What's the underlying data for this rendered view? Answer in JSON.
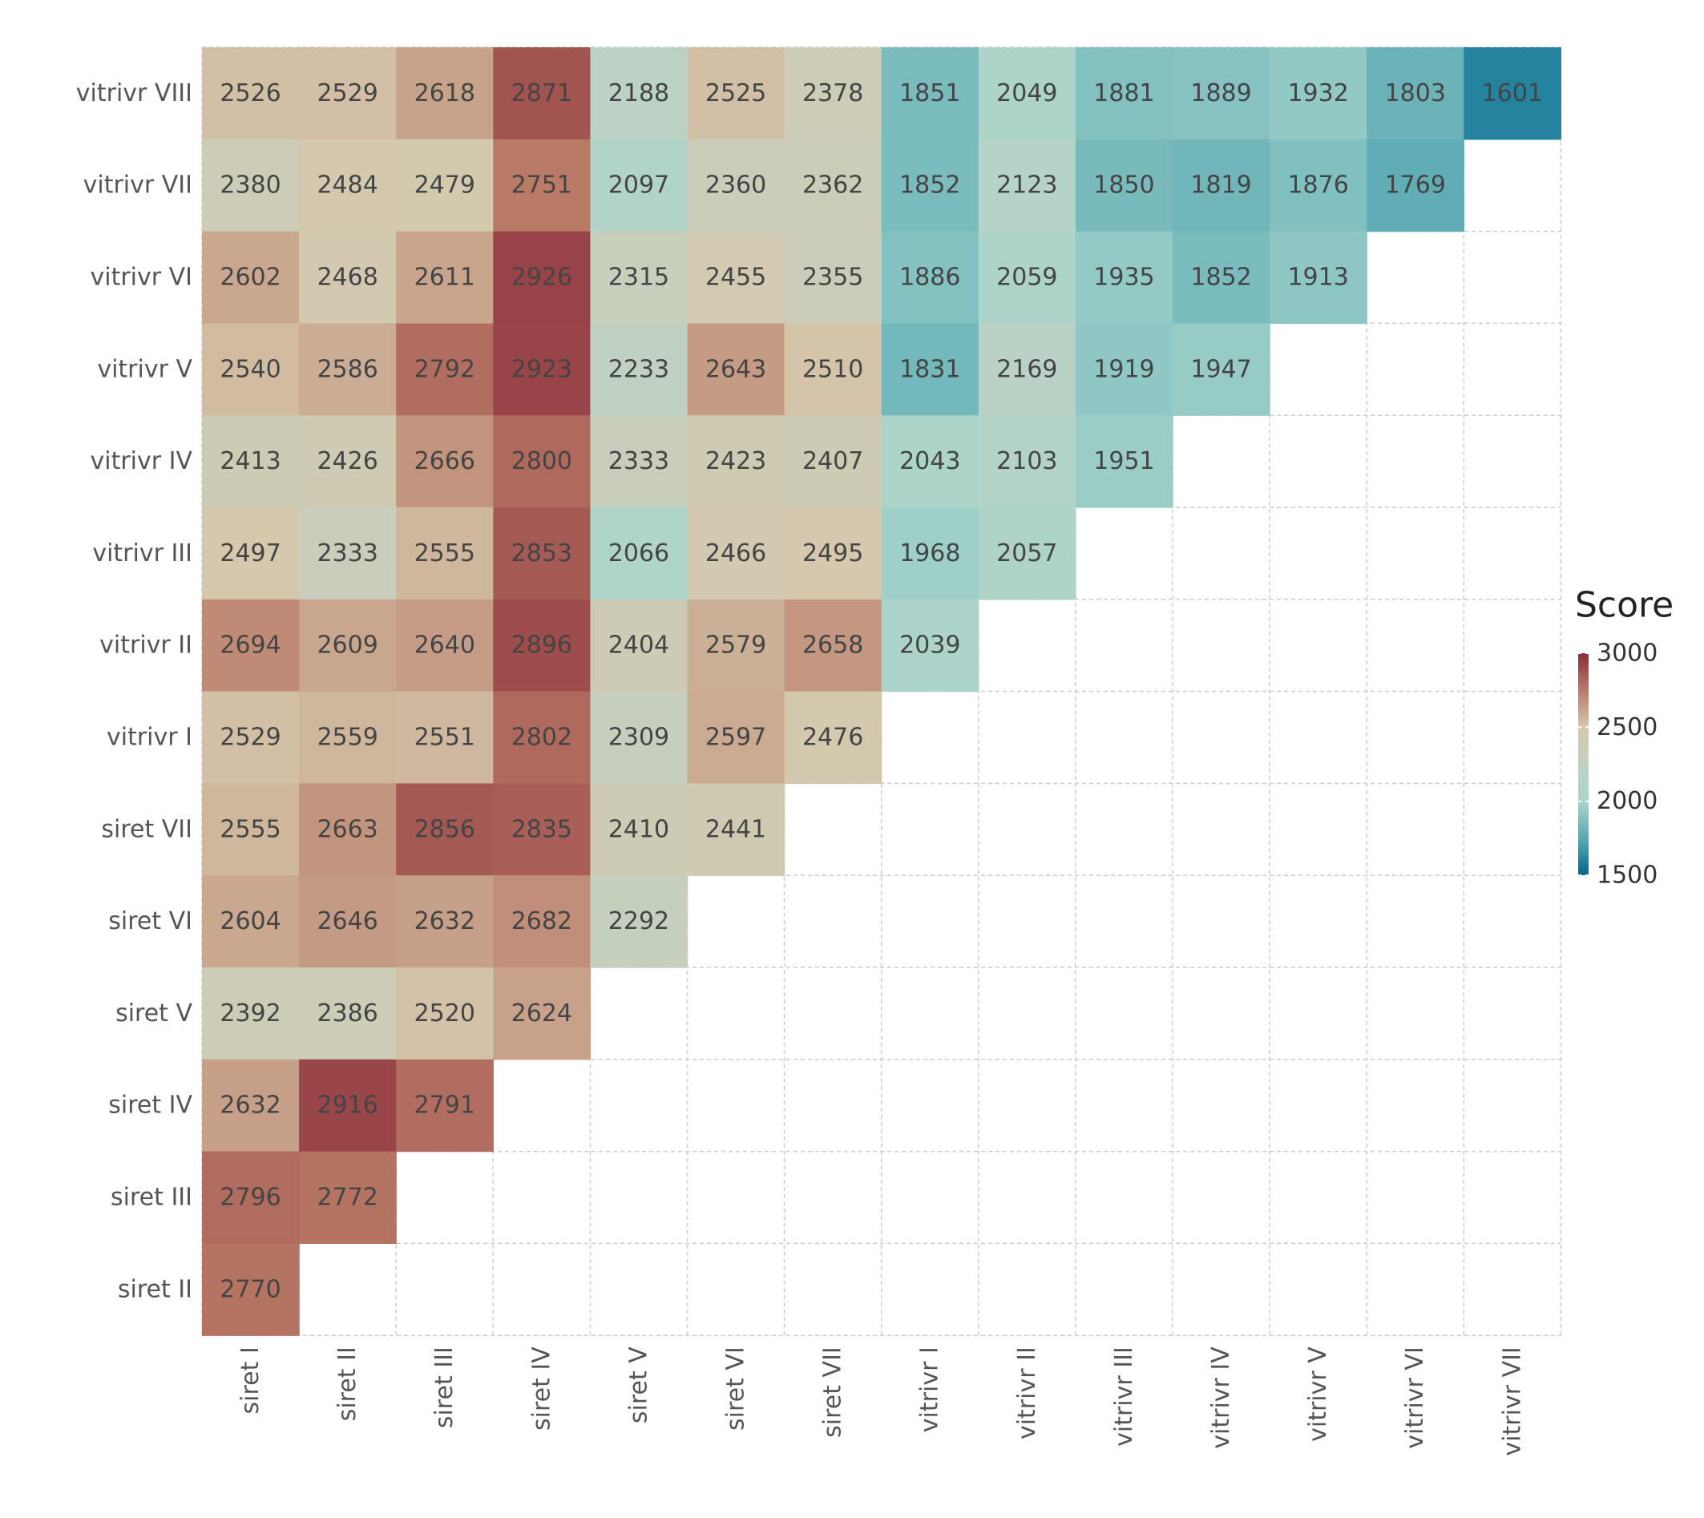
{
  "chart_data": {
    "type": "heatmap",
    "x_categories": [
      "siret I",
      "siret II",
      "siret III",
      "siret IV",
      "siret V",
      "siret VI",
      "siret VII",
      "vitrivr I",
      "vitrivr II",
      "vitrivr III",
      "vitrivr IV",
      "vitrivr V",
      "vitrivr VI",
      "vitrivr VII"
    ],
    "y_categories": [
      "vitrivr VIII",
      "vitrivr VII",
      "vitrivr VI",
      "vitrivr V",
      "vitrivr IV",
      "vitrivr III",
      "vitrivr II",
      "vitrivr I",
      "siret VII",
      "siret VI",
      "siret V",
      "siret IV",
      "siret III",
      "siret II"
    ],
    "values": [
      [
        2526,
        2529,
        2618,
        2871,
        2188,
        2525,
        2378,
        1851,
        2049,
        1881,
        1889,
        1932,
        1803,
        1601
      ],
      [
        2380,
        2484,
        2479,
        2751,
        2097,
        2360,
        2362,
        1852,
        2123,
        1850,
        1819,
        1876,
        1769,
        null
      ],
      [
        2602,
        2468,
        2611,
        2926,
        2315,
        2455,
        2355,
        1886,
        2059,
        1935,
        1852,
        1913,
        null,
        null
      ],
      [
        2540,
        2586,
        2792,
        2923,
        2233,
        2643,
        2510,
        1831,
        2169,
        1919,
        1947,
        null,
        null,
        null
      ],
      [
        2413,
        2426,
        2666,
        2800,
        2333,
        2423,
        2407,
        2043,
        2103,
        1951,
        null,
        null,
        null,
        null
      ],
      [
        2497,
        2333,
        2555,
        2853,
        2066,
        2466,
        2495,
        1968,
        2057,
        null,
        null,
        null,
        null,
        null
      ],
      [
        2694,
        2609,
        2640,
        2896,
        2404,
        2579,
        2658,
        2039,
        null,
        null,
        null,
        null,
        null,
        null
      ],
      [
        2529,
        2559,
        2551,
        2802,
        2309,
        2597,
        2476,
        null,
        null,
        null,
        null,
        null,
        null,
        null
      ],
      [
        2555,
        2663,
        2856,
        2835,
        2410,
        2441,
        null,
        null,
        null,
        null,
        null,
        null,
        null,
        null
      ],
      [
        2604,
        2646,
        2632,
        2682,
        2292,
        null,
        null,
        null,
        null,
        null,
        null,
        null,
        null,
        null
      ],
      [
        2392,
        2386,
        2520,
        2624,
        null,
        null,
        null,
        null,
        null,
        null,
        null,
        null,
        null,
        null
      ],
      [
        2632,
        2916,
        2791,
        null,
        null,
        null,
        null,
        null,
        null,
        null,
        null,
        null,
        null,
        null
      ],
      [
        2796,
        2772,
        null,
        null,
        null,
        null,
        null,
        null,
        null,
        null,
        null,
        null,
        null,
        null
      ],
      [
        2770,
        null,
        null,
        null,
        null,
        null,
        null,
        null,
        null,
        null,
        null,
        null,
        null,
        null
      ]
    ],
    "legend": {
      "title": "Score",
      "range": [
        1500,
        3000
      ],
      "ticks": [
        1500,
        2000,
        2500,
        3000
      ],
      "placement": "right"
    },
    "color_scale": {
      "stops": [
        {
          "value": 1500,
          "color": "#00688f"
        },
        {
          "value": 1750,
          "color": "#5aaab4"
        },
        {
          "value": 2000,
          "color": "#a8d5cb"
        },
        {
          "value": 2250,
          "color": "#c2d1c2"
        },
        {
          "value": 2500,
          "color": "#d5c8ad"
        },
        {
          "value": 2750,
          "color": "#b97a66"
        },
        {
          "value": 3000,
          "color": "#8a2c3a"
        }
      ]
    },
    "grid": true,
    "grid_color": "#c8ccd6"
  }
}
